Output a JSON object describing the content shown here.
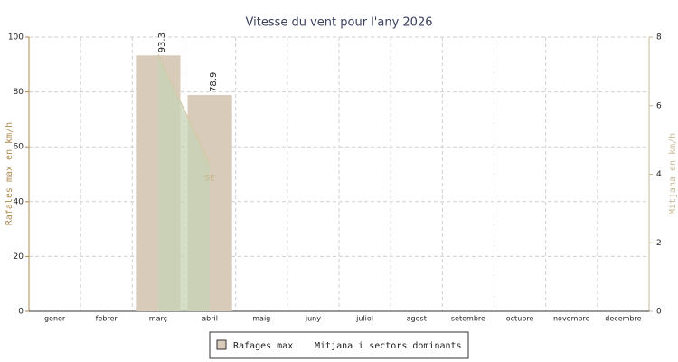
{
  "chart_data": {
    "type": "bar",
    "title": "Vitesse du vent pour l'any 2026",
    "categories": [
      "gener",
      "febrer",
      "març",
      "abril",
      "maig",
      "juny",
      "juliol",
      "agost",
      "setembre",
      "octubre",
      "novembre",
      "decembre"
    ],
    "series": [
      {
        "name": "Rafages max",
        "color": "#d8cbb9",
        "values": [
          null,
          null,
          93.3,
          78.9,
          null,
          null,
          null,
          null,
          null,
          null,
          null,
          null
        ]
      },
      {
        "name": "Mitjana i sectors dominants",
        "color": "#c7d3b7",
        "line_color": "#d9c6a3",
        "axis": "y2",
        "values": [
          null,
          null,
          7.5,
          4.3,
          null,
          null,
          null,
          null,
          null,
          null,
          null,
          null
        ],
        "sectors": [
          null,
          null,
          null,
          "SE",
          null,
          null,
          null,
          null,
          null,
          null,
          null,
          null
        ]
      }
    ],
    "ylabel": "Rafales max en km/h",
    "y2label": "Mitjana en km/h",
    "ylim": [
      0,
      100
    ],
    "yticks": [
      0,
      20,
      40,
      60,
      80,
      100
    ],
    "y2lim": [
      0,
      8
    ],
    "y2ticks": [
      0,
      2,
      4,
      6,
      8
    ],
    "grid": true,
    "legend": "bottom"
  }
}
